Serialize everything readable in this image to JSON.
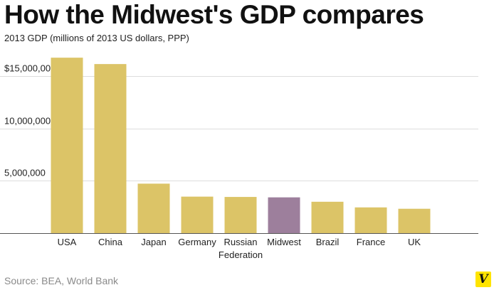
{
  "page": {
    "title": "How the Midwest's GDP compares",
    "subtitle": "2013 GDP (millions of 2013 US dollars, PPP)",
    "source": "Source: BEA, World Bank",
    "logo_text": "V"
  },
  "colors": {
    "bar": "#dcc467",
    "highlight": "#9d7f9c",
    "grid": "#dddddd",
    "axis": "#555555",
    "logo_bg": "#ffe400"
  },
  "chart_data": {
    "type": "bar",
    "title": "How the Midwest's GDP compares",
    "subtitle": "2013 GDP (millions of 2013 US dollars, PPP)",
    "xlabel": "",
    "ylabel": "",
    "categories": [
      "USA",
      "China",
      "Japan",
      "Germany",
      "Russian Federation",
      "Midwest",
      "Brazil",
      "France",
      "UK"
    ],
    "values": [
      16770000,
      16160000,
      4730000,
      3490000,
      3460000,
      3420000,
      3000000,
      2460000,
      2330000
    ],
    "highlight": "Midwest",
    "ylim": [
      0,
      16000000
    ],
    "yticks": [
      5000000,
      10000000,
      15000000
    ],
    "ytick_labels": [
      "5,000,000",
      "10,000,000",
      "$15,000,000"
    ],
    "grid": true
  }
}
